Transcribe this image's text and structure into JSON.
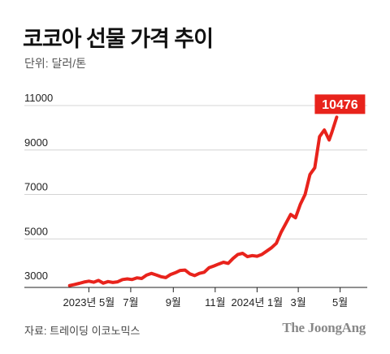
{
  "chart_data": {
    "type": "line",
    "title": "코코아 선물 가격 추이",
    "unit_label": "단위: 달러/톤",
    "source": "자료: 트레이딩 이코노믹스",
    "brand": "The JoongAng",
    "ylim": [
      3000,
      11000
    ],
    "yticks": [
      3000,
      5000,
      7000,
      9000,
      11000
    ],
    "xlim": [
      "2023-04-01",
      "2024-05-31"
    ],
    "xticks": [
      {
        "date": "2023-05-01",
        "label": "2023년 5월"
      },
      {
        "date": "2023-07-01",
        "label": "7월"
      },
      {
        "date": "2023-09-01",
        "label": "9월"
      },
      {
        "date": "2023-11-01",
        "label": "11월"
      },
      {
        "date": "2024-01-01",
        "label": "2024년 1월"
      },
      {
        "date": "2024-03-01",
        "label": "3월"
      },
      {
        "date": "2024-05-01",
        "label": "5월"
      }
    ],
    "grid": true,
    "callout": {
      "date": "2024-04-26",
      "value": 10476,
      "label": "10476",
      "color": "#e8231c"
    },
    "series": [
      {
        "color": "#e8231c",
        "points": [
          [
            "2023-04-03",
            2900
          ],
          [
            "2023-04-10",
            2950
          ],
          [
            "2023-04-17",
            3000
          ],
          [
            "2023-04-24",
            3060
          ],
          [
            "2023-05-01",
            3100
          ],
          [
            "2023-05-08",
            3050
          ],
          [
            "2023-05-15",
            3130
          ],
          [
            "2023-05-22",
            3010
          ],
          [
            "2023-05-29",
            3080
          ],
          [
            "2023-06-05",
            3040
          ],
          [
            "2023-06-12",
            3070
          ],
          [
            "2023-06-19",
            3170
          ],
          [
            "2023-06-26",
            3200
          ],
          [
            "2023-07-03",
            3170
          ],
          [
            "2023-07-10",
            3250
          ],
          [
            "2023-07-17",
            3220
          ],
          [
            "2023-07-24",
            3370
          ],
          [
            "2023-07-31",
            3450
          ],
          [
            "2023-08-07",
            3380
          ],
          [
            "2023-08-14",
            3300
          ],
          [
            "2023-08-21",
            3260
          ],
          [
            "2023-08-28",
            3400
          ],
          [
            "2023-09-04",
            3480
          ],
          [
            "2023-09-11",
            3580
          ],
          [
            "2023-09-18",
            3600
          ],
          [
            "2023-09-25",
            3430
          ],
          [
            "2023-10-02",
            3350
          ],
          [
            "2023-10-09",
            3450
          ],
          [
            "2023-10-16",
            3500
          ],
          [
            "2023-10-23",
            3700
          ],
          [
            "2023-10-30",
            3780
          ],
          [
            "2023-11-06",
            3870
          ],
          [
            "2023-11-13",
            3950
          ],
          [
            "2023-11-20",
            3900
          ],
          [
            "2023-11-27",
            4120
          ],
          [
            "2023-12-04",
            4300
          ],
          [
            "2023-12-11",
            4350
          ],
          [
            "2023-12-18",
            4200
          ],
          [
            "2023-12-25",
            4250
          ],
          [
            "2024-01-01",
            4220
          ],
          [
            "2024-01-08",
            4300
          ],
          [
            "2024-01-15",
            4450
          ],
          [
            "2024-01-22",
            4600
          ],
          [
            "2024-01-29",
            4800
          ],
          [
            "2024-02-05",
            5300
          ],
          [
            "2024-02-12",
            5700
          ],
          [
            "2024-02-19",
            6100
          ],
          [
            "2024-02-26",
            5950
          ],
          [
            "2024-03-04",
            6550
          ],
          [
            "2024-03-11",
            7000
          ],
          [
            "2024-03-18",
            7900
          ],
          [
            "2024-03-25",
            8200
          ],
          [
            "2024-04-01",
            9600
          ],
          [
            "2024-04-08",
            9900
          ],
          [
            "2024-04-15",
            9450
          ],
          [
            "2024-04-19",
            9800
          ],
          [
            "2024-04-26",
            10476
          ]
        ]
      }
    ]
  }
}
